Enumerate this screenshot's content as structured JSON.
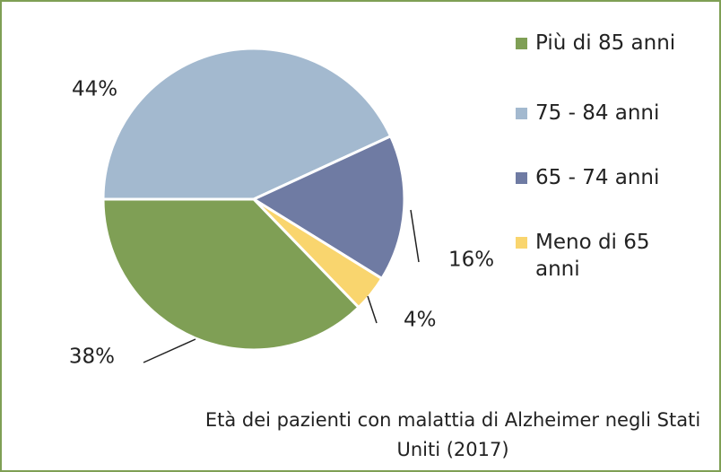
{
  "chart_data": {
    "type": "pie",
    "title": "Età dei pazienti con malattia di Alzheimer negli Stati Uniti (2017)",
    "categories": [
      "Più di 85 anni",
      "75 - 84 anni",
      "65 - 74 anni",
      "Meno di 65 anni"
    ],
    "values": [
      38,
      44,
      16,
      4
    ],
    "value_labels": [
      "38%",
      "44%",
      "16%",
      "4%"
    ],
    "colors": [
      "#7f9f55",
      "#a3b9cf",
      "#6f7ba3",
      "#f9d56e"
    ],
    "legend": "right"
  }
}
